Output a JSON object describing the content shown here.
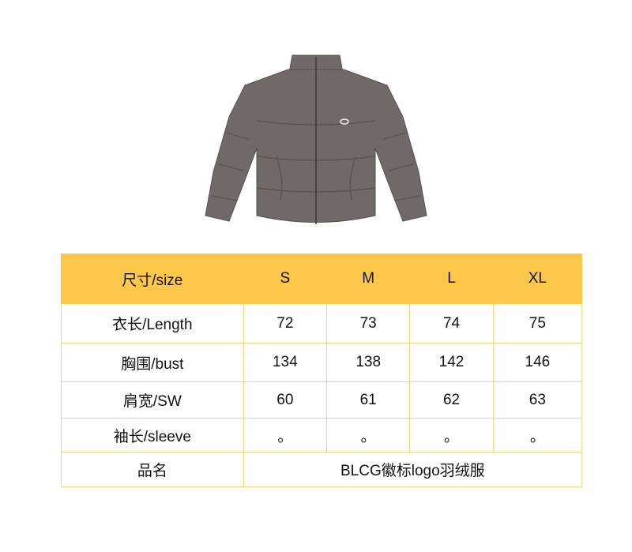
{
  "product_image": {
    "description_icon": "grey-puffer-jacket",
    "logo_text": "",
    "color": "#6f6a69"
  },
  "table": {
    "header": [
      "尺寸/size",
      "S",
      "M",
      "L",
      "XL"
    ],
    "rows": [
      {
        "label": "衣长/Length",
        "values": [
          "72",
          "73",
          "74",
          "75"
        ]
      },
      {
        "label": "胸围/bust",
        "values": [
          "134",
          "138",
          "142",
          "146"
        ]
      },
      {
        "label": "肩宽/SW",
        "values": [
          "60",
          "61",
          "62",
          "63"
        ]
      },
      {
        "label": "袖长/sleeve",
        "values": [
          "。",
          "。",
          "。",
          "。"
        ]
      }
    ],
    "name_row": {
      "label": "品名",
      "value": "BLCG徽标logo羽绒服"
    },
    "header_color": "#fdc84a",
    "border_color": "#f5d37a"
  }
}
